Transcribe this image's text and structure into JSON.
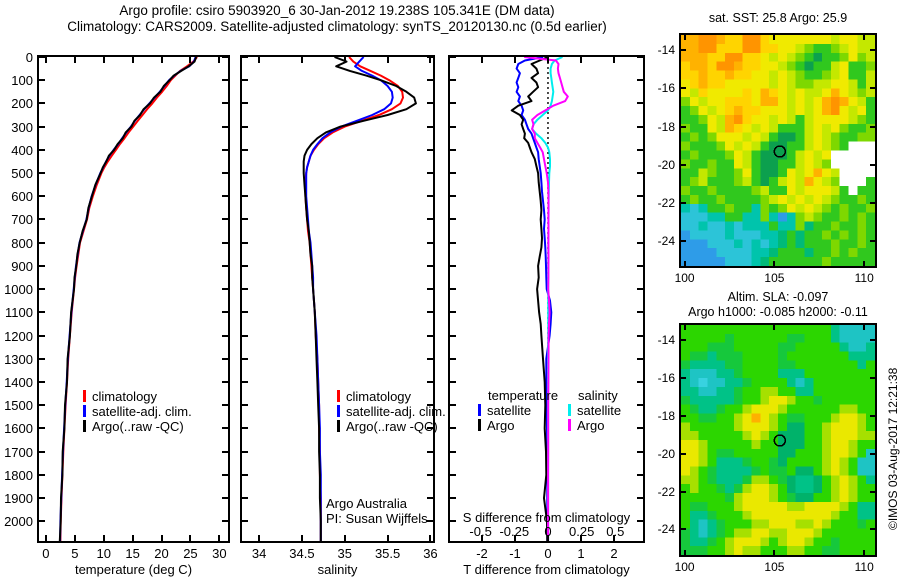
{
  "title": {
    "line1": "Argo profile: csiro 5903920_6 30-Jan-2012 19.238S 105.341E (DM data)",
    "line2": "Climatology: CARS2009. Satellite-adjusted climatology: synTS_20120130.nc (0.5d earlier)"
  },
  "watermark": "©IMOS 03-Aug-2017 12:21:38",
  "chart_data": [
    {
      "type": "line",
      "id": "temperature-profile",
      "xlabel": "temperature (deg C)",
      "xticks": [
        0,
        5,
        10,
        15,
        20,
        25,
        30
      ],
      "xlim": [
        -1.2,
        31.5
      ],
      "ylim": [
        0,
        2085
      ],
      "yticks": [
        0,
        100,
        200,
        300,
        400,
        500,
        600,
        700,
        800,
        900,
        1000,
        1100,
        1200,
        1300,
        1400,
        1500,
        1600,
        1700,
        1800,
        1900,
        2000
      ],
      "legend": [
        {
          "label": "climatology",
          "color": "#ff0000"
        },
        {
          "label": "satellite-adj. clim.",
          "color": "#0000ff"
        },
        {
          "label": "Argo(..raw -QC)",
          "color": "#000000"
        }
      ],
      "depth": [
        0,
        20,
        40,
        60,
        80,
        100,
        125,
        150,
        175,
        200,
        225,
        250,
        275,
        300,
        325,
        350,
        375,
        400,
        425,
        450,
        475,
        500,
        550,
        600,
        650,
        700,
        750,
        800,
        850,
        900,
        950,
        1000,
        1100,
        1200,
        1300,
        1400,
        1500,
        1600,
        1700,
        1800,
        1900,
        2000,
        2085
      ],
      "series": [
        {
          "name": "climatology",
          "color": "#ff0000",
          "values": [
            26.15,
            25.5,
            24.4,
            23.2,
            22.4,
            21.6,
            20.9,
            20.1,
            19.2,
            18.4,
            17.5,
            16.7,
            15.9,
            15.1,
            14.3,
            13.6,
            12.8,
            12.1,
            11.4,
            10.7,
            10.1,
            9.6,
            8.8,
            8.1,
            7.5,
            7.1,
            6.5,
            5.9,
            5.6,
            5.3,
            5.05,
            4.85,
            4.45,
            4.15,
            3.85,
            3.65,
            3.4,
            3.2,
            3.0,
            2.85,
            2.7,
            2.55,
            2.5
          ]
        },
        {
          "name": "satellite-adj. clim.",
          "color": "#0000ff",
          "values": [
            25.9,
            25.6,
            24.8,
            23.3,
            22.2,
            21.3,
            20.5,
            19.7,
            18.8,
            17.9,
            17.0,
            16.2,
            15.4,
            14.7,
            13.9,
            13.2,
            12.5,
            11.7,
            11.0,
            10.4,
            9.9,
            9.4,
            8.6,
            7.9,
            7.4,
            7.0,
            6.4,
            5.8,
            5.5,
            5.2,
            5.0,
            4.8,
            4.4,
            4.1,
            3.8,
            3.6,
            3.35,
            3.15,
            2.95,
            2.8,
            2.65,
            2.5,
            2.45
          ]
        },
        {
          "name": "Argo(..raw -QC)",
          "color": "#000000",
          "values": [
            26.0,
            25.7,
            24.7,
            23.4,
            22.1,
            21.4,
            20.4,
            19.8,
            18.7,
            18.0,
            16.9,
            16.3,
            15.3,
            14.8,
            13.8,
            13.3,
            12.4,
            11.8,
            10.9,
            10.45,
            9.85,
            9.45,
            8.55,
            7.95,
            7.35,
            7.05,
            6.35,
            5.85,
            5.45,
            5.25,
            4.95,
            4.85,
            4.35,
            4.15,
            3.75,
            3.65,
            3.3,
            3.2,
            2.9,
            2.85,
            2.6,
            2.55,
            2.4
          ]
        }
      ]
    },
    {
      "type": "line",
      "id": "salinity-profile",
      "xlabel": "salinity",
      "xticks": [
        34,
        34.5,
        35,
        35.5,
        36
      ],
      "xlim": [
        33.8,
        36.03
      ],
      "ylim": [
        0,
        2085
      ],
      "legend": [
        {
          "label": "climatology",
          "color": "#ff0000"
        },
        {
          "label": "satellite-adj. clim.",
          "color": "#0000ff"
        },
        {
          "label": "Argo(..raw -QC)",
          "color": "#000000"
        }
      ],
      "annotations": [
        "Argo Australia",
        "PI: Susan Wijffels"
      ],
      "depth": [
        0,
        20,
        40,
        60,
        80,
        100,
        125,
        150,
        175,
        200,
        225,
        250,
        275,
        300,
        325,
        350,
        375,
        400,
        425,
        450,
        475,
        500,
        550,
        600,
        650,
        700,
        750,
        800,
        850,
        900,
        950,
        1000,
        1100,
        1200,
        1300,
        1400,
        1500,
        1600,
        1700,
        1800,
        1900,
        2000,
        2085
      ],
      "series": [
        {
          "name": "climatology",
          "color": "#ff0000",
          "values": [
            35.05,
            35.1,
            35.18,
            35.3,
            35.42,
            35.52,
            35.62,
            35.67,
            35.68,
            35.65,
            35.55,
            35.4,
            35.2,
            35.0,
            34.86,
            34.76,
            34.69,
            34.64,
            34.6,
            34.58,
            34.56,
            34.55,
            34.54,
            34.54,
            34.55,
            34.56,
            34.57,
            34.59,
            34.6,
            34.61,
            34.62,
            34.63,
            34.65,
            34.66,
            34.68,
            34.69,
            34.7,
            34.7,
            34.71,
            34.71,
            34.72,
            34.72,
            34.72
          ]
        },
        {
          "name": "satellite-adj. clim.",
          "color": "#0000ff",
          "values": [
            35.22,
            35.17,
            35.12,
            35.2,
            35.32,
            35.42,
            35.5,
            35.55,
            35.56,
            35.54,
            35.46,
            35.32,
            35.14,
            34.96,
            34.83,
            34.74,
            34.68,
            34.63,
            34.6,
            34.58,
            34.56,
            34.55,
            34.55,
            34.55,
            34.56,
            34.57,
            34.58,
            34.6,
            34.61,
            34.62,
            34.63,
            34.63,
            34.65,
            34.67,
            34.68,
            34.69,
            34.7,
            34.71,
            34.71,
            34.72,
            34.72,
            34.72,
            34.72
          ]
        },
        {
          "name": "Argo(..raw -QC)",
          "color": "#000000",
          "values": [
            34.88,
            35.02,
            34.9,
            35.06,
            35.25,
            35.42,
            35.6,
            35.72,
            35.81,
            35.83,
            35.72,
            35.5,
            35.22,
            34.95,
            34.78,
            34.68,
            34.61,
            34.56,
            34.53,
            34.52,
            34.52,
            34.52,
            34.53,
            34.54,
            34.55,
            34.56,
            34.58,
            34.59,
            34.6,
            34.62,
            34.62,
            34.63,
            34.65,
            34.66,
            34.67,
            34.68,
            34.69,
            34.7,
            34.7,
            34.71,
            34.71,
            34.72,
            34.72
          ]
        }
      ]
    },
    {
      "type": "line",
      "id": "difference-profile",
      "xlabel": "T difference from climatology",
      "xticks": [
        -2,
        -1,
        0,
        1,
        2
      ],
      "xlim": [
        -2.97,
        2.88
      ],
      "ylim": [
        0,
        2085
      ],
      "s_axis_label": "S difference from climatology",
      "s_ticks": [
        -0.5,
        -0.25,
        0,
        0.25,
        0.5
      ],
      "zero_line": true,
      "legend_groups": [
        {
          "header": "temperature",
          "items": [
            {
              "label": "satellite",
              "color": "#0000ff"
            },
            {
              "label": "Argo",
              "color": "#000000"
            }
          ]
        },
        {
          "header": "salinity",
          "items": [
            {
              "label": "satellite",
              "color": "#00eeee"
            },
            {
              "label": "Argo",
              "color": "#ff00ff"
            }
          ]
        }
      ],
      "depth": [
        0,
        15,
        30,
        50,
        70,
        90,
        110,
        130,
        150,
        170,
        190,
        210,
        230,
        250,
        270,
        290,
        310,
        330,
        350,
        370,
        390,
        410,
        440,
        470,
        500,
        540,
        580,
        620,
        660,
        700,
        740,
        780,
        820,
        860,
        900,
        950,
        1000,
        1050,
        1100,
        1150,
        1200,
        1300,
        1400,
        1500,
        1600,
        1700,
        1800,
        1900,
        2000,
        2085
      ],
      "series": [
        {
          "name": "T satellite",
          "color": "#0000ff",
          "axis": "T",
          "values": [
            -0.15,
            -0.7,
            -0.9,
            -0.95,
            -0.85,
            -0.9,
            -0.95,
            -0.9,
            -0.95,
            -0.85,
            -0.9,
            -0.8,
            -0.75,
            -0.8,
            -0.7,
            -0.65,
            -0.6,
            -0.5,
            -0.45,
            -0.4,
            -0.35,
            -0.3,
            -0.28,
            -0.25,
            -0.22,
            -0.2,
            -0.18,
            -0.15,
            -0.12,
            -0.1,
            -0.12,
            -0.1,
            -0.08,
            -0.07,
            -0.06,
            -0.05,
            -0.04,
            0.06,
            0.1,
            0.08,
            0.05,
            -0.05,
            -0.05,
            -0.04,
            -0.03,
            -0.02,
            -0.02,
            -0.02,
            -0.02,
            -0.02
          ]
        },
        {
          "name": "T Argo",
          "color": "#000000",
          "axis": "T",
          "values": [
            0.0,
            -0.25,
            -0.5,
            -0.35,
            -0.3,
            -0.5,
            -0.35,
            -0.3,
            -0.45,
            -0.6,
            -0.5,
            -0.9,
            -1.1,
            -0.85,
            -0.75,
            -0.8,
            -0.75,
            -0.7,
            -0.72,
            -0.6,
            -0.55,
            -0.5,
            -0.4,
            -0.35,
            -0.3,
            -0.28,
            -0.25,
            -0.22,
            -0.2,
            -0.22,
            -0.2,
            -0.18,
            -0.2,
            -0.25,
            -0.3,
            -0.28,
            -0.33,
            -0.3,
            -0.27,
            -0.22,
            -0.2,
            -0.15,
            -0.1,
            -0.08,
            -0.1,
            -0.06,
            -0.05,
            -0.12,
            -0.03,
            -0.02
          ]
        },
        {
          "name": "S satellite",
          "color": "#00eeee",
          "axis": "S",
          "values": [
            0.11,
            0.05,
            0.03,
            0.02,
            0.02,
            0.025,
            0.03,
            0.035,
            0.04,
            0.035,
            0.03,
            0.02,
            0.0,
            -0.04,
            -0.08,
            -0.11,
            -0.12,
            -0.09,
            -0.05,
            -0.02,
            0.0,
            0.01,
            0.015,
            0.015,
            0.01,
            0.008,
            0.006,
            0.005,
            0.005,
            0.004,
            0.004,
            0.003,
            0.003,
            0.003,
            0.002,
            0.002,
            0.002,
            0.002,
            0.002,
            0.002,
            0.002,
            0.001,
            0.001,
            0.001,
            0.001,
            0.001,
            0.001,
            0.001,
            0.001,
            0.001
          ]
        },
        {
          "name": "S Argo",
          "color": "#ff00ff",
          "axis": "S",
          "values": [
            -0.18,
            0.06,
            0.08,
            0.075,
            0.08,
            0.09,
            0.1,
            0.11,
            0.12,
            0.15,
            0.13,
            0.04,
            -0.02,
            -0.08,
            -0.12,
            -0.11,
            -0.12,
            -0.1,
            -0.1,
            -0.08,
            -0.06,
            -0.04,
            -0.03,
            -0.02,
            -0.01,
            0.0,
            0.003,
            0.004,
            0.004,
            0.003,
            0.004,
            0.003,
            0.003,
            0.004,
            0.003,
            0.003,
            0.002,
            0.008,
            0.012,
            0.008,
            0.005,
            0.004,
            0.003,
            0.002,
            0.002,
            0.002,
            0.001,
            0.001,
            0.001,
            0.001
          ]
        }
      ]
    },
    {
      "type": "heatmap",
      "id": "sst-map",
      "title": "sat. SST: 25.8 Argo: 25.9",
      "xticks": [
        100,
        105,
        110
      ],
      "yticks": [
        -14,
        -16,
        -18,
        -20,
        -22,
        -24
      ],
      "lon_range": [
        99.8,
        110.6
      ],
      "lat_range": [
        -13.2,
        -25.3
      ],
      "marker": {
        "lon": 105.3,
        "lat": -19.3
      },
      "palette": {
        "O": "#ff9400",
        "o": "#ffb200",
        "a": "#ffd400",
        "y": "#f0ea00",
        "l": "#c4e800",
        "g": "#7ed800",
        "G": "#30c81e",
        "D": "#0ca04e",
        "e": "#00ba78",
        "c": "#00c4ac",
        "C": "#2cc4d8",
        "B": "#2e9ce8",
        "W": "#ffffff"
      },
      "grid": [
        "ooOOoaaOOayyyyyyylyyll",
        "ooOOaaaOOaayylgGGglyll",
        "oooaaOOaaylylgGDGGgygl",
        "aooaOOoaayylgGDGGlyGGg",
        "aaoaaoaayylylgGGglyGGl",
        "yaoaayyyyylylggllyylGl",
        "ylayyyyayoaylyllyoylgl",
        "gylyyaaayooylylyoOoylG",
        "GgylyaoaayyylylyoOylyG",
        "GGgyloOayylylGlyyyylgG",
        "gGGyloaylylGGGlylygGGg",
        "GgGgyyylylGDDGlylgGGgg",
        "gGGGgylylGDDGGlylgGWWW",
        "GgGGGgylGDDDGlylyWWWWW",
        "gGGgGGylGDDGGlylgWWWWW",
        "GGlgGGgyGDDGylyoylWWWW",
        "GglGGGglGDGlyloylgWWWG",
        "gGGgGGGGglGGylyyylGWGG",
        "GgGGgGGGGglylylylgGGgG",
        "cCcGGgGGcgGgylylgGgGGg",
        "CCCccGGccgcBcglgGGgGgG",
        "CCcCCcCcccGccgeGGgGGgG",
        "BCCCCcCCCcceGeGGgGgGgG",
        "BBBCCCcCcCceGeGGGgGGgG",
        "BBBBCCCCcceGGGeGGgGgGG",
        "BBBBBCCCceGGGGGGgGGGGG"
      ]
    },
    {
      "type": "heatmap",
      "id": "sla-map",
      "title": "Altim. SLA: -0.097",
      "title2": "Argo h1000: -0.085 h2000: -0.11",
      "xticks": [
        100,
        105,
        110
      ],
      "yticks": [
        -14,
        -16,
        -18,
        -20,
        -22,
        -24
      ],
      "lon_range": [
        99.8,
        110.6
      ],
      "lat_range": [
        -13.2,
        -25.35
      ],
      "marker": {
        "lon": 105.3,
        "lat": -19.3
      },
      "palette": {
        "G": "#2cd600",
        "e": "#16c83c",
        "t": "#00c287",
        "c": "#1ec4c4",
        "C": "#38d2e0",
        "d": "#00b26a",
        "l": "#a6e000",
        "y": "#eae800",
        "o": "#ffb000"
      },
      "grid": [
        "GGGGGGGGGGGGGGGGGtcccc",
        "GGGGGeGGGGGGeeGGGtcccc",
        "GGGeeeGGGGGeeGGGGGtcct",
        "GeeteeeGGGGeGGGGGGGttt",
        "etttteeGGGGeeGGGGGGGtG",
        "tccctteGGGGtttGGGGGGGG",
        "tcCcctteGGGGtctGGGGGGG",
        "ttcctteGGllGGttGGGGGGG",
        "ettttteGGlyylGGeGGGGGG",
        "GetteGGlyyylGGGGGGllGG",
        "GGeeGGlyoylGeeGGGlyylG",
        "lGGGGGlyyylGddGGlyyylG",
        "llGGGGGlylGdddGGlyyyll",
        "yylGGGGGlGGdddGGlyylGG",
        "yylGeeGGGGGddGGGlyylGc",
        "yylGttteGGedGGGGlylGcc",
        "ylGetttteGeeGddGlylGcc",
        "llGetttellGedttdGlylGt",
        "GlGGetelyylGdttdGlylGG",
        "GGGGGelyyylGeddGGlylGG",
        "GeeGGGlyyyyyllyyyylGtt",
        "GtteGGGlyyyyyyyyylGGtt",
        "GtcteGGGllyyyllylGGGeG",
        "etcteGllyyllyyylGGGGGG",
        "etteGlyyylGlyylGGeGGGG",
        "eeeGGlyllGGGllGGeeGGGG"
      ]
    }
  ]
}
